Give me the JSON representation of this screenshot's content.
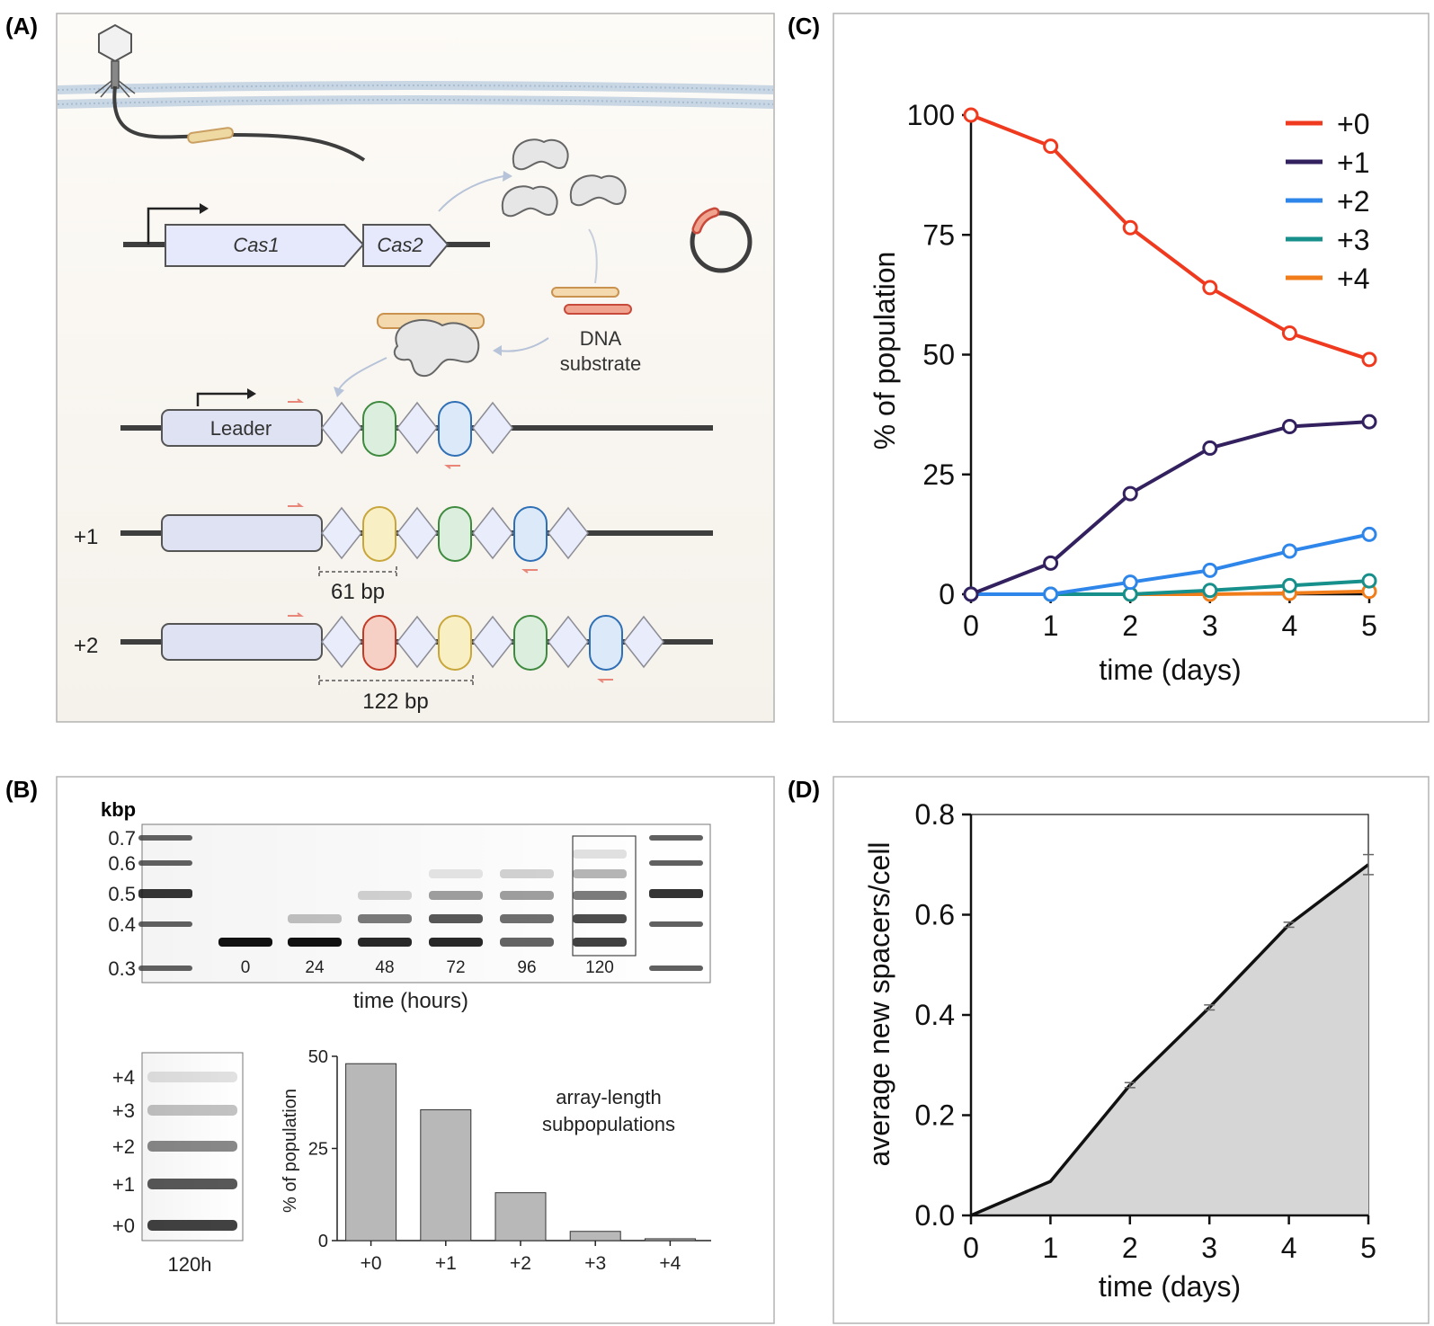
{
  "panelA": {
    "label": "(A)",
    "cas1": "Cas1",
    "cas2": "Cas2",
    "dna_substrate": [
      "DNA",
      "substrate"
    ],
    "leader": "Leader",
    "row_plus1": "+1",
    "row_plus2": "+2",
    "bp61": "61 bp",
    "bp122": "122 bp"
  },
  "panelB": {
    "label": "(B)",
    "gel": {
      "kbp_label": "kbp",
      "ladder": [
        "0.7",
        "0.6",
        "0.5",
        "0.4",
        "0.3"
      ],
      "lanes": [
        "0",
        "24",
        "48",
        "72",
        "96",
        "120"
      ],
      "xlabel": "time (hours)"
    },
    "inset": {
      "bands": [
        "+4",
        "+3",
        "+2",
        "+1",
        "+0"
      ],
      "caption": "120h"
    },
    "chart_data": {
      "type": "bar",
      "categories": [
        "+0",
        "+1",
        "+2",
        "+3",
        "+4"
      ],
      "values": [
        48,
        35.5,
        13,
        2.5,
        0.5
      ],
      "ylabel": "% of population",
      "yticks": [
        "0",
        "25",
        "50"
      ],
      "ylim": [
        0,
        50
      ],
      "annotation": [
        "array-length",
        "subpopulations"
      ]
    }
  },
  "panelC": {
    "label": "(C)",
    "chart_data": {
      "type": "line",
      "x": [
        0,
        1,
        2,
        3,
        4,
        5
      ],
      "xlabel": "time (days)",
      "ylabel": "% of population",
      "ylim": [
        0,
        100
      ],
      "xticks": [
        "0",
        "1",
        "2",
        "3",
        "4",
        "5"
      ],
      "yticks": [
        "0",
        "25",
        "50",
        "75",
        "100"
      ],
      "series": [
        {
          "name": "+0",
          "color": "#f03a1f",
          "values": [
            100,
            93.5,
            76.5,
            64,
            54.5,
            49
          ]
        },
        {
          "name": "+1",
          "color": "#33205f",
          "values": [
            0,
            6.5,
            21,
            30.5,
            35,
            36
          ]
        },
        {
          "name": "+2",
          "color": "#2f86ea",
          "values": [
            0,
            0,
            2.5,
            5,
            9,
            12.5
          ]
        },
        {
          "name": "+3",
          "color": "#178f8b",
          "values": [
            0,
            0,
            0,
            0.8,
            1.8,
            2.8
          ]
        },
        {
          "name": "+4",
          "color": "#f07d1a",
          "values": [
            0,
            0,
            0,
            0,
            0.2,
            0.6
          ]
        }
      ]
    }
  },
  "panelD": {
    "label": "(D)",
    "chart_data": {
      "type": "area",
      "x": [
        0,
        1,
        2,
        3,
        4,
        5
      ],
      "values": [
        0,
        0.068,
        0.26,
        0.415,
        0.58,
        0.7
      ],
      "errors": [
        0,
        0,
        0.005,
        0.005,
        0.005,
        0.02
      ],
      "xlabel": "time (days)",
      "ylabel": "average new spacers/cell",
      "ylim": [
        0,
        0.8
      ],
      "xticks": [
        "0",
        "1",
        "2",
        "3",
        "4",
        "5"
      ],
      "yticks": [
        "0.0",
        "0.2",
        "0.4",
        "0.6",
        "0.8"
      ]
    }
  }
}
